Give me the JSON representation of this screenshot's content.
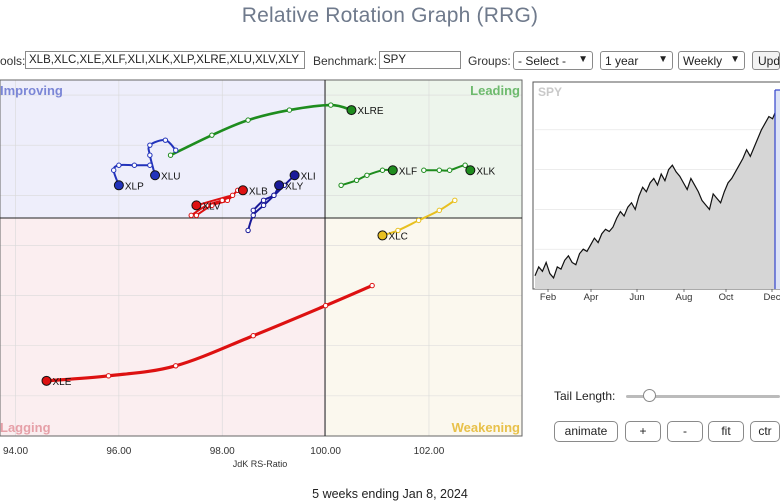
{
  "page": {
    "title": "Relative Rotation Graph (RRG)",
    "footer": "5 weeks ending Jan 8, 2024"
  },
  "toolbar": {
    "symbols_label": "ools:",
    "symbols_value": "XLB,XLC,XLE,XLF,XLI,XLK,XLP,XLRE,XLU,XLV,XLY",
    "benchmark_label": "Benchmark:",
    "benchmark_value": "SPY",
    "groups_label": "Groups:",
    "groups_value": "- Select -",
    "period_value": "1 year",
    "frequency_value": "Weekly",
    "update_label": "Upd"
  },
  "controls": {
    "tail_length_label": "Tail Length:",
    "animate_label": "animate",
    "plus_label": "+",
    "minus_label": "-",
    "fit_label": "fit",
    "ctr_label": "ctr"
  },
  "colors": {
    "improving_bg": "#eeeefb",
    "leading_bg": "#edf5ec",
    "lagging_bg": "#fbeef0",
    "weakening_bg": "#fbf8ee",
    "improving_text": "#7b86d6",
    "leading_text": "#6dba6d",
    "lagging_text": "#e6a0a8",
    "weakening_text": "#e8c14a"
  },
  "chart_data": [
    {
      "type": "scatter",
      "xlabel": "JdK RS-Ratio",
      "ylabel": "",
      "x_center": 100,
      "y_center": 100,
      "xlim": [
        93.7,
        103.8
      ],
      "ylim": [
        95.2,
        102.3
      ],
      "x_ticks": [
        "94.00",
        "96.00",
        "98.00",
        "100.00",
        "102.00"
      ],
      "quadrants": {
        "improving": "Improving",
        "leading": "Leading",
        "lagging": "Lagging",
        "weakening": "Weakening"
      },
      "series": [
        {
          "name": "XLRE",
          "color": "#1e8c1e",
          "points": [
            [
              97.0,
              100.8
            ],
            [
              97.8,
              101.2
            ],
            [
              98.5,
              101.5
            ],
            [
              99.3,
              101.7
            ],
            [
              100.1,
              101.8
            ],
            [
              100.5,
              101.7
            ]
          ]
        },
        {
          "name": "XLF",
          "color": "#1e8c1e",
          "points": [
            [
              100.3,
              100.2
            ],
            [
              100.6,
              100.3
            ],
            [
              100.8,
              100.4
            ],
            [
              101.1,
              100.5
            ],
            [
              101.3,
              100.5
            ]
          ]
        },
        {
          "name": "XLK",
          "color": "#1e8c1e",
          "points": [
            [
              101.9,
              100.5
            ],
            [
              102.2,
              100.5
            ],
            [
              102.4,
              100.5
            ],
            [
              102.7,
              100.6
            ],
            [
              102.8,
              100.5
            ]
          ]
        },
        {
          "name": "XLI",
          "color": "#1a1a99",
          "points": [
            [
              98.6,
              99.7
            ],
            [
              98.8,
              99.9
            ],
            [
              99.0,
              100.0
            ],
            [
              99.2,
              100.2
            ],
            [
              99.4,
              100.4
            ]
          ]
        },
        {
          "name": "XLY",
          "color": "#1a1a99",
          "points": [
            [
              98.5,
              99.3
            ],
            [
              98.6,
              99.6
            ],
            [
              98.8,
              99.8
            ],
            [
              99.0,
              100.0
            ],
            [
              99.1,
              100.2
            ]
          ]
        },
        {
          "name": "XLU",
          "color": "#2233bb",
          "points": [
            [
              97.1,
              100.9
            ],
            [
              96.9,
              101.1
            ],
            [
              96.6,
              101.0
            ],
            [
              96.6,
              100.8
            ],
            [
              96.7,
              100.4
            ]
          ]
        },
        {
          "name": "XLP",
          "color": "#2233bb",
          "points": [
            [
              96.6,
              100.6
            ],
            [
              96.3,
              100.6
            ],
            [
              96.0,
              100.6
            ],
            [
              95.9,
              100.5
            ],
            [
              96.0,
              100.2
            ]
          ]
        },
        {
          "name": "XLB",
          "color": "#dd1111",
          "points": [
            [
              97.5,
              99.6
            ],
            [
              97.8,
              99.8
            ],
            [
              98.1,
              99.9
            ],
            [
              98.3,
              100.1
            ],
            [
              98.4,
              100.1
            ]
          ]
        },
        {
          "name": "XLV",
          "color": "#dd1111",
          "points": [
            [
              97.4,
              99.6
            ],
            [
              97.7,
              99.8
            ],
            [
              98.0,
              99.9
            ],
            [
              98.2,
              100.0
            ],
            [
              97.5,
              99.8
            ]
          ]
        },
        {
          "name": "XLC",
          "color": "#e8c020",
          "points": [
            [
              102.5,
              99.9
            ],
            [
              102.2,
              99.7
            ],
            [
              101.8,
              99.5
            ],
            [
              101.4,
              99.3
            ],
            [
              101.1,
              99.2
            ]
          ]
        },
        {
          "name": "XLE",
          "color": "#dd1111",
          "points": [
            [
              100.9,
              98.2
            ],
            [
              100.0,
              97.8
            ],
            [
              98.6,
              97.2
            ],
            [
              97.1,
              96.6
            ],
            [
              95.8,
              96.4
            ],
            [
              94.6,
              96.3
            ]
          ]
        }
      ]
    },
    {
      "type": "area",
      "title": "SPY",
      "x_ticks": [
        "Feb",
        "Apr",
        "Jun",
        "Aug",
        "Oct",
        "Dec"
      ],
      "values": [
        46,
        50,
        48,
        52,
        47,
        45,
        50,
        49,
        53,
        55,
        52,
        51,
        56,
        58,
        57,
        60,
        63,
        61,
        65,
        67,
        66,
        68,
        72,
        75,
        73,
        77,
        79,
        76,
        82,
        86,
        84,
        88,
        90,
        87,
        92,
        89,
        94,
        96,
        93,
        91,
        88,
        85,
        90,
        87,
        84,
        80,
        78,
        76,
        83,
        81,
        79,
        84,
        88,
        90,
        93,
        96,
        99,
        103,
        100,
        104,
        108,
        112,
        115,
        118,
        117,
        121,
        125
      ],
      "ylim": [
        40,
        130
      ]
    }
  ]
}
